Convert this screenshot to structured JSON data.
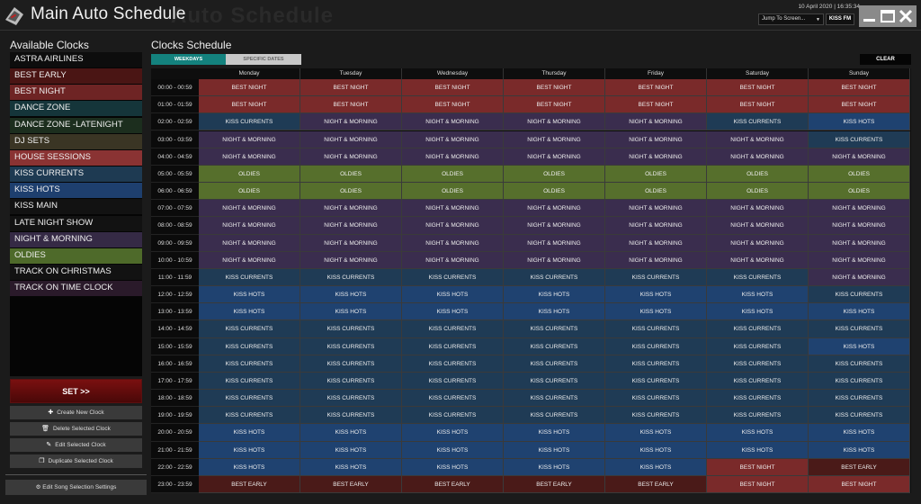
{
  "header": {
    "title": "Main Auto Schedule",
    "watermark": "Auto Schedule",
    "datetime": "10 April 2020 | 16:35:34",
    "jump_label": "Jump To Screen...",
    "station": "KISS FM"
  },
  "clocks_panel": {
    "title": "Available Clocks",
    "items": [
      {
        "label": "ASTRA AIRLINES",
        "color": "#0d0d0d"
      },
      {
        "label": "BEST EARLY",
        "color": "#4a1514"
      },
      {
        "label": "BEST NIGHT",
        "color": "#6e2424"
      },
      {
        "label": "DANCE ZONE",
        "color": "#15353a"
      },
      {
        "label": "DANCE ZONE -LATENIGHT",
        "color": "#1c2e1e"
      },
      {
        "label": "DJ SETS",
        "color": "#3a3524"
      },
      {
        "label": "HOUSE SESSIONS",
        "color": "#8a3333"
      },
      {
        "label": "KISS CURRENTS",
        "color": "#1e3a52"
      },
      {
        "label": "KISS HOTS",
        "color": "#1e3f6e"
      },
      {
        "label": "KISS MAIN",
        "color": "#121212"
      },
      {
        "label": "LATE NIGHT SHOW",
        "color": "#121212"
      },
      {
        "label": "NIGHT & MORNING",
        "color": "#352a45"
      },
      {
        "label": "OLDIES",
        "color": "#4e6a2a"
      },
      {
        "label": "TRACK ON CHRISTMAS",
        "color": "#121212"
      },
      {
        "label": "TRACK ON TIME CLOCK",
        "color": "#2a1a2a"
      }
    ],
    "set_label": "SET >>",
    "actions": [
      {
        "label": "Create New Clock",
        "icon": "plus-icon"
      },
      {
        "label": "Delete Selected Clock",
        "icon": "trash-icon"
      },
      {
        "label": "Edit Selected Clock",
        "icon": "pencil-icon"
      },
      {
        "label": "Duplicate Selected Clock",
        "icon": "copy-icon"
      }
    ],
    "song_settings_label": "Edit Song Selection Settings"
  },
  "schedule": {
    "title": "Clocks Schedule",
    "tabs": [
      "WEEKDAYS",
      "SPECIFIC DATES"
    ],
    "clear_label": "CLEAR",
    "days": [
      "Monday",
      "Tuesday",
      "Wednesday",
      "Thursday",
      "Friday",
      "Saturday",
      "Sunday"
    ],
    "palette": {
      "BEST NIGHT": "#7a2a2a",
      "BEST EARLY": "#4a1a18",
      "KISS CURRENTS": "#1f3b55",
      "KISS HOTS": "#1f4270",
      "NIGHT & MORNING": "#3a2d4e",
      "OLDIES": "#566f2c"
    },
    "rows": [
      {
        "time": "00:00 - 00:59",
        "cells": [
          "BEST NIGHT",
          "BEST NIGHT",
          "BEST NIGHT",
          "BEST NIGHT",
          "BEST NIGHT",
          "BEST NIGHT",
          "BEST NIGHT"
        ]
      },
      {
        "time": "01:00 - 01:59",
        "cells": [
          "BEST NIGHT",
          "BEST NIGHT",
          "BEST NIGHT",
          "BEST NIGHT",
          "BEST NIGHT",
          "BEST NIGHT",
          "BEST NIGHT"
        ]
      },
      {
        "time": "02:00 - 02:59",
        "cells": [
          "KISS CURRENTS",
          "NIGHT & MORNING",
          "NIGHT & MORNING",
          "NIGHT & MORNING",
          "NIGHT & MORNING",
          "KISS CURRENTS",
          "KISS HOTS"
        ]
      },
      {
        "time": "03:00 - 03:59",
        "cells": [
          "NIGHT & MORNING",
          "NIGHT & MORNING",
          "NIGHT & MORNING",
          "NIGHT & MORNING",
          "NIGHT & MORNING",
          "NIGHT & MORNING",
          "KISS CURRENTS"
        ]
      },
      {
        "time": "04:00 - 04:59",
        "cells": [
          "NIGHT & MORNING",
          "NIGHT & MORNING",
          "NIGHT & MORNING",
          "NIGHT & MORNING",
          "NIGHT & MORNING",
          "NIGHT & MORNING",
          "NIGHT & MORNING"
        ]
      },
      {
        "time": "05:00 - 05:59",
        "cells": [
          "OLDIES",
          "OLDIES",
          "OLDIES",
          "OLDIES",
          "OLDIES",
          "OLDIES",
          "OLDIES"
        ]
      },
      {
        "time": "06:00 - 06:59",
        "cells": [
          "OLDIES",
          "OLDIES",
          "OLDIES",
          "OLDIES",
          "OLDIES",
          "OLDIES",
          "OLDIES"
        ]
      },
      {
        "time": "07:00 - 07:59",
        "cells": [
          "NIGHT & MORNING",
          "NIGHT & MORNING",
          "NIGHT & MORNING",
          "NIGHT & MORNING",
          "NIGHT & MORNING",
          "NIGHT & MORNING",
          "NIGHT & MORNING"
        ]
      },
      {
        "time": "08:00 - 08:59",
        "cells": [
          "NIGHT & MORNING",
          "NIGHT & MORNING",
          "NIGHT & MORNING",
          "NIGHT & MORNING",
          "NIGHT & MORNING",
          "NIGHT & MORNING",
          "NIGHT & MORNING"
        ]
      },
      {
        "time": "09:00 - 09:59",
        "cells": [
          "NIGHT & MORNING",
          "NIGHT & MORNING",
          "NIGHT & MORNING",
          "NIGHT & MORNING",
          "NIGHT & MORNING",
          "NIGHT & MORNING",
          "NIGHT & MORNING"
        ]
      },
      {
        "time": "10:00 - 10:59",
        "cells": [
          "NIGHT & MORNING",
          "NIGHT & MORNING",
          "NIGHT & MORNING",
          "NIGHT & MORNING",
          "NIGHT & MORNING",
          "NIGHT & MORNING",
          "NIGHT & MORNING"
        ]
      },
      {
        "time": "11:00 - 11:59",
        "cells": [
          "KISS CURRENTS",
          "KISS CURRENTS",
          "KISS CURRENTS",
          "KISS CURRENTS",
          "KISS CURRENTS",
          "KISS CURRENTS",
          "NIGHT & MORNING"
        ]
      },
      {
        "time": "12:00 - 12:59",
        "cells": [
          "KISS HOTS",
          "KISS HOTS",
          "KISS HOTS",
          "KISS HOTS",
          "KISS HOTS",
          "KISS HOTS",
          "KISS CURRENTS"
        ]
      },
      {
        "time": "13:00 - 13:59",
        "cells": [
          "KISS HOTS",
          "KISS HOTS",
          "KISS HOTS",
          "KISS HOTS",
          "KISS HOTS",
          "KISS HOTS",
          "KISS HOTS"
        ]
      },
      {
        "time": "14:00 - 14:59",
        "cells": [
          "KISS CURRENTS",
          "KISS CURRENTS",
          "KISS CURRENTS",
          "KISS CURRENTS",
          "KISS CURRENTS",
          "KISS CURRENTS",
          "KISS CURRENTS"
        ]
      },
      {
        "time": "15:00 - 15:59",
        "cells": [
          "KISS CURRENTS",
          "KISS CURRENTS",
          "KISS CURRENTS",
          "KISS CURRENTS",
          "KISS CURRENTS",
          "KISS CURRENTS",
          "KISS HOTS"
        ]
      },
      {
        "time": "16:00 - 16:59",
        "cells": [
          "KISS CURRENTS",
          "KISS CURRENTS",
          "KISS CURRENTS",
          "KISS CURRENTS",
          "KISS CURRENTS",
          "KISS CURRENTS",
          "KISS CURRENTS"
        ]
      },
      {
        "time": "17:00 - 17:59",
        "cells": [
          "KISS CURRENTS",
          "KISS CURRENTS",
          "KISS CURRENTS",
          "KISS CURRENTS",
          "KISS CURRENTS",
          "KISS CURRENTS",
          "KISS CURRENTS"
        ]
      },
      {
        "time": "18:00 - 18:59",
        "cells": [
          "KISS CURRENTS",
          "KISS CURRENTS",
          "KISS CURRENTS",
          "KISS CURRENTS",
          "KISS CURRENTS",
          "KISS CURRENTS",
          "KISS CURRENTS"
        ]
      },
      {
        "time": "19:00 - 19:59",
        "cells": [
          "KISS CURRENTS",
          "KISS CURRENTS",
          "KISS CURRENTS",
          "KISS CURRENTS",
          "KISS CURRENTS",
          "KISS CURRENTS",
          "KISS CURRENTS"
        ]
      },
      {
        "time": "20:00 - 20:59",
        "cells": [
          "KISS HOTS",
          "KISS HOTS",
          "KISS HOTS",
          "KISS HOTS",
          "KISS HOTS",
          "KISS HOTS",
          "KISS HOTS"
        ]
      },
      {
        "time": "21:00 - 21:59",
        "cells": [
          "KISS HOTS",
          "KISS HOTS",
          "KISS HOTS",
          "KISS HOTS",
          "KISS HOTS",
          "KISS HOTS",
          "KISS HOTS"
        ]
      },
      {
        "time": "22:00 - 22:59",
        "cells": [
          "KISS HOTS",
          "KISS HOTS",
          "KISS HOTS",
          "KISS HOTS",
          "KISS HOTS",
          "BEST NIGHT",
          "BEST EARLY"
        ]
      },
      {
        "time": "23:00 - 23:59",
        "cells": [
          "BEST EARLY",
          "BEST EARLY",
          "BEST EARLY",
          "BEST EARLY",
          "BEST EARLY",
          "BEST NIGHT",
          "BEST NIGHT"
        ]
      }
    ]
  }
}
